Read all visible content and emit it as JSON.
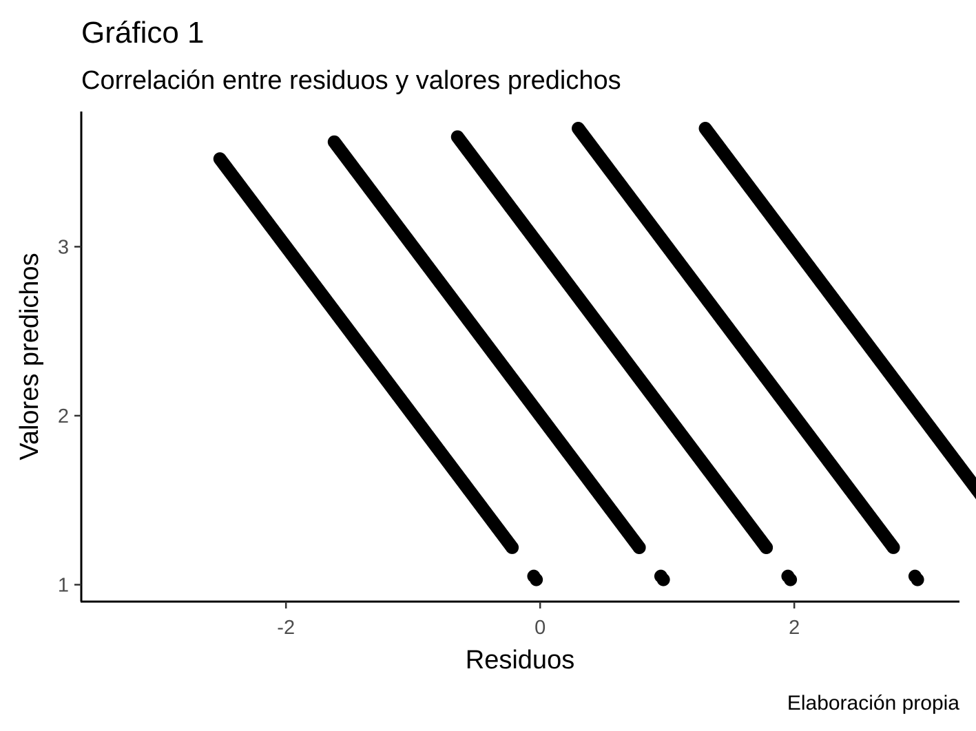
{
  "chart_data": {
    "type": "scatter",
    "title": "Gráfico 1",
    "subtitle": "Correlación entre residuos y valores predichos",
    "xlabel": "Residuos",
    "ylabel": "Valores predichos",
    "caption": "Elaboración propia",
    "xlim": [
      -3.6,
      3.3
    ],
    "ylim": [
      0.9,
      3.8
    ],
    "x_ticks": [
      {
        "value": -2,
        "label": "-2"
      },
      {
        "value": 0,
        "label": "0"
      },
      {
        "value": 2,
        "label": "2"
      }
    ],
    "y_ticks": [
      {
        "value": 1,
        "label": "1"
      },
      {
        "value": 2,
        "label": "2"
      },
      {
        "value": 3,
        "label": "3"
      }
    ],
    "grid": false,
    "legend": "none",
    "point_color": "#000000",
    "bands": [
      {
        "outcome": 1,
        "y_top": 3.52,
        "y_bottom": 1.22,
        "isolated": [
          1.05,
          1.03
        ]
      },
      {
        "outcome": 2,
        "y_top": 3.62,
        "y_bottom": 1.22,
        "isolated": [
          1.05,
          1.03
        ]
      },
      {
        "outcome": 3,
        "y_top": 3.65,
        "y_bottom": 1.22,
        "isolated": [
          1.05,
          1.03
        ]
      },
      {
        "outcome": 4,
        "y_top": 3.7,
        "y_bottom": 1.22,
        "isolated": [
          1.05,
          1.03
        ]
      },
      {
        "outcome": 5,
        "y_top": 3.7,
        "y_bottom": 1.22,
        "isolated": [
          1.05,
          1.03
        ]
      }
    ]
  }
}
